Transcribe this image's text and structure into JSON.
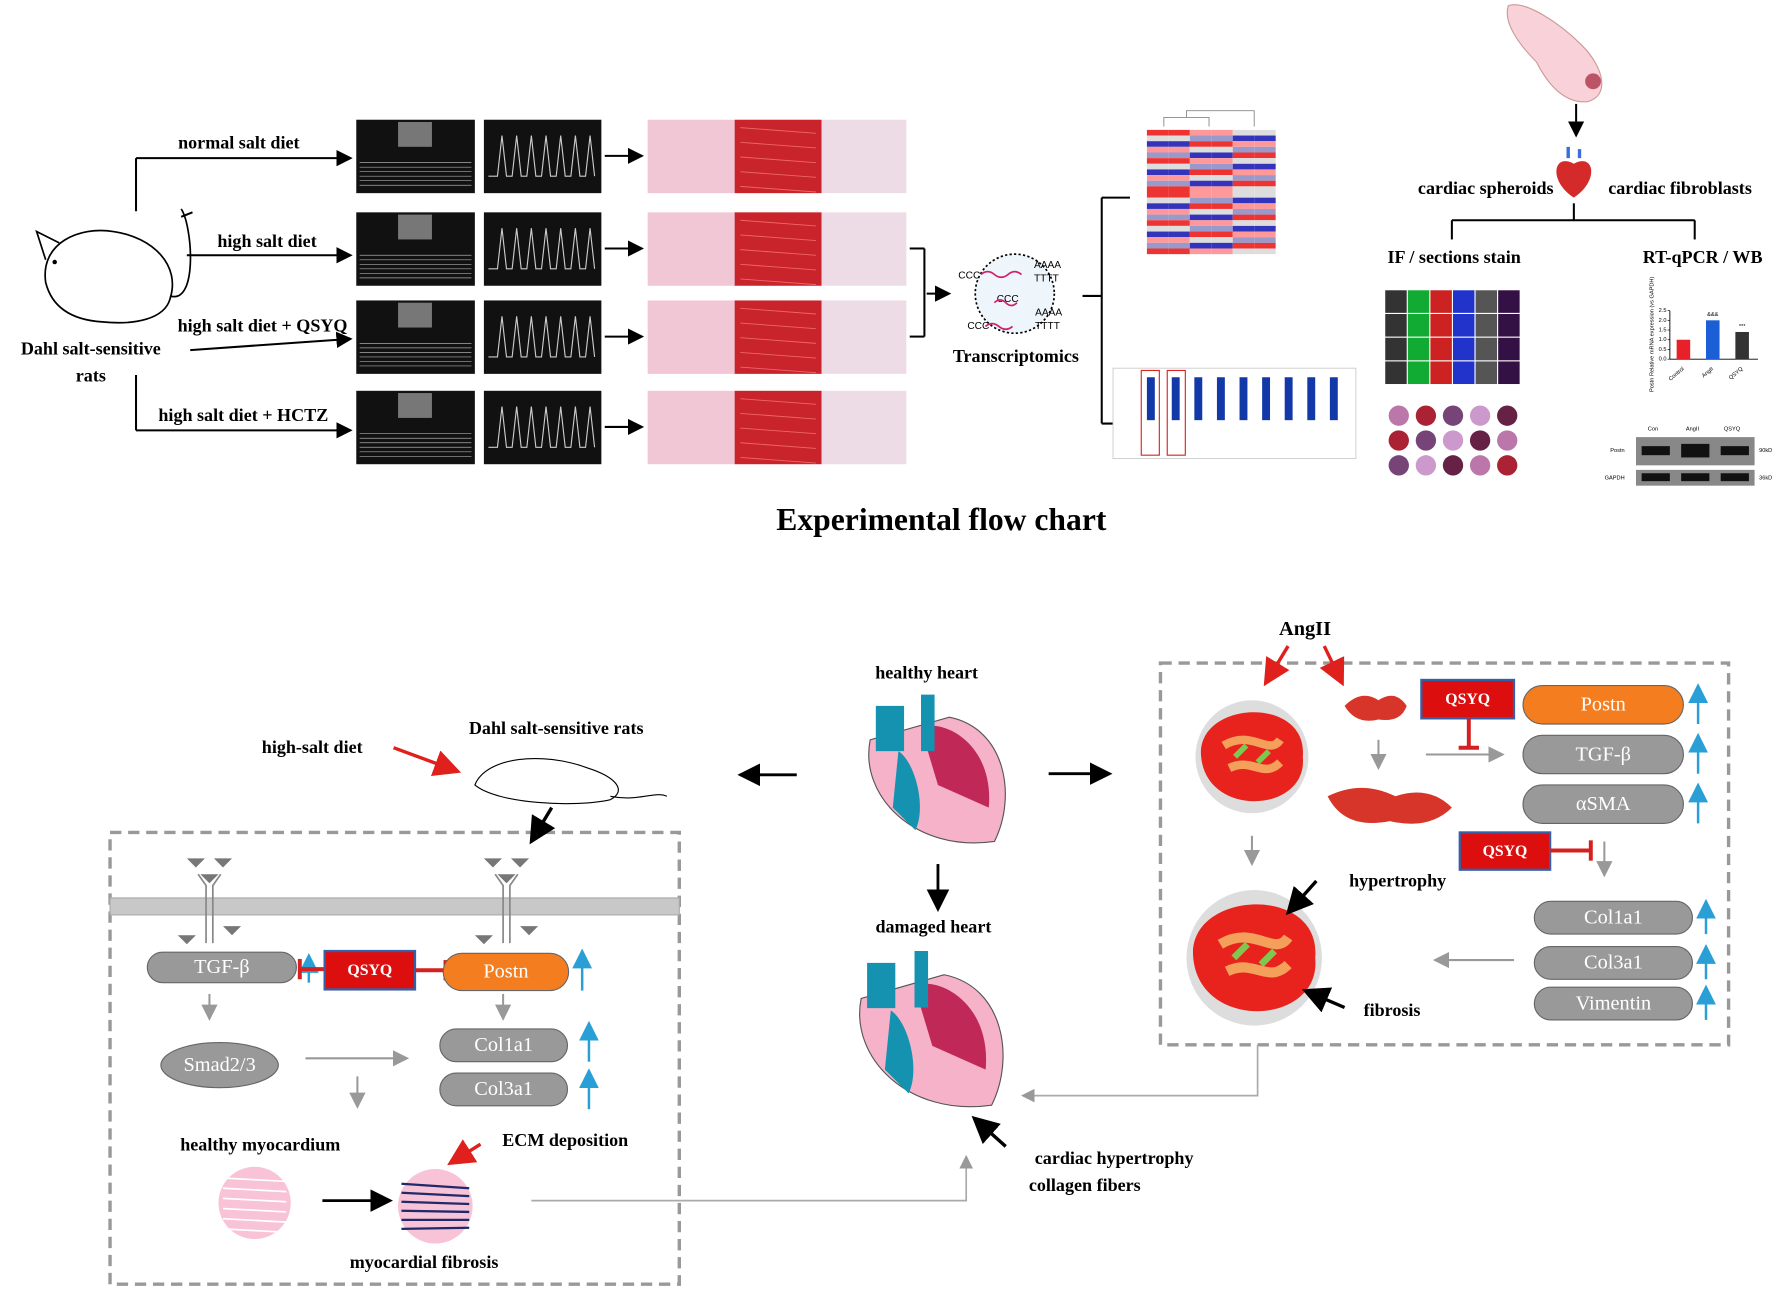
{
  "flow": {
    "subject_lines": [
      "Dahl salt-sensitive",
      "rats"
    ],
    "groups": [
      "normal salt diet",
      "high salt diet",
      "high salt diet + QSYQ",
      "high salt diet + HCTZ"
    ],
    "strands": [
      [
        "CCC",
        "AAAA",
        "TTTT"
      ],
      [
        "CCC",
        "AAAA"
      ],
      [
        "CCC",
        "TTTT"
      ]
    ],
    "transcriptomics": "Transcriptomics",
    "branches": [
      "cardiac spheroids",
      "cardiac fibroblasts"
    ],
    "methods": [
      "IF / sections stain",
      "RT-qPCR / WB"
    ],
    "title": "Experimental flow chart"
  },
  "qpcr_chart": {
    "type": "bar",
    "ylabel": "Postn Relative mRNA expression (vs GAPDH)",
    "categories": [
      "Control",
      "AngII",
      "QSYQ"
    ],
    "values": [
      1,
      2,
      1.4
    ],
    "colors": [
      "#e8202a",
      "#1b5fd6",
      "#333333"
    ],
    "annotations": [
      null,
      "&&&",
      "***"
    ],
    "ylim": [
      0,
      2.5
    ],
    "yticks": [
      {
        "value": 0,
        "label": "0.0"
      },
      {
        "value": 0.5,
        "label": "0.5"
      },
      {
        "value": 1,
        "label": "1.0"
      },
      {
        "value": 1.5,
        "label": "1.5"
      },
      {
        "value": 2,
        "label": "2.0"
      },
      {
        "value": 2.5,
        "label": "2.5"
      }
    ]
  },
  "western_blot": {
    "lanes": [
      "Con",
      "AngII",
      "QSYQ"
    ],
    "bands": [
      "Postn",
      "GAPDH"
    ],
    "sizes": [
      "90kDa",
      "36kDa"
    ]
  },
  "mechanism": {
    "left": {
      "diet": "high-salt diet",
      "model": "Dahl salt-sensitive rats",
      "tgf": "TGF-β",
      "drug": "QSYQ",
      "postn": "Postn",
      "smad": "Smad2/3",
      "col1": "Col1a1",
      "col3": "Col3a1",
      "healthy": "healthy myocardium",
      "ecm": "ECM deposition",
      "fibrosis": "myocardial fibrosis"
    },
    "center": {
      "healthy": "healthy heart",
      "damaged": "damaged heart",
      "notes": [
        "cardiac hypertrophy",
        "collagen fibers"
      ]
    },
    "right": {
      "stimulus": "AngII",
      "drug": [
        "QSYQ",
        "QSYQ"
      ],
      "markers": [
        "Postn",
        "TGF-β",
        "αSMA"
      ],
      "ecm_markers": [
        "Col1a1",
        "Col3a1",
        "Vimentin"
      ],
      "hypertrophy": "hypertrophy",
      "fibrosis": "fibrosis"
    }
  }
}
